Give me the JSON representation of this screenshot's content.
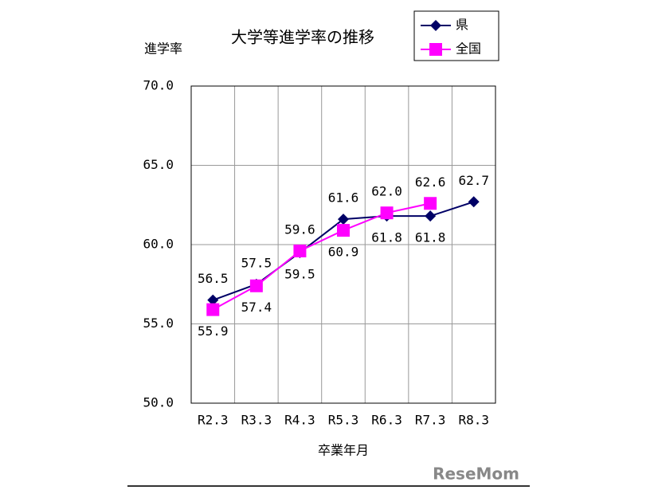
{
  "chart_data": {
    "type": "line",
    "title": "大学等進学率の推移",
    "y_label": "進学率",
    "x_label": "卒業年月",
    "categories": [
      "R2.3",
      "R3.3",
      "R4.3",
      "R5.3",
      "R6.3",
      "R7.3",
      "R8.3"
    ],
    "series": [
      {
        "name": "県",
        "color": "#000066",
        "marker": "diamond",
        "values": [
          56.5,
          57.5,
          59.5,
          61.6,
          61.8,
          61.8,
          62.7
        ],
        "value_labels": [
          "56.5",
          "57.5",
          "59.5",
          "61.6",
          "61.8",
          "61.8",
          "62.7"
        ]
      },
      {
        "name": "全国",
        "color": "#ff00ff",
        "marker": "square",
        "values": [
          55.9,
          57.4,
          59.6,
          60.9,
          62.0,
          62.6,
          null
        ],
        "value_labels": [
          "55.9",
          "57.4",
          "59.6",
          "60.9",
          "62.0",
          "62.6",
          null
        ]
      }
    ],
    "ylim": [
      50,
      70
    ],
    "yticks": [
      {
        "value": 50,
        "label": "50.0"
      },
      {
        "value": 55,
        "label": "55.0"
      },
      {
        "value": 60,
        "label": "60.0"
      },
      {
        "value": 65,
        "label": "65.0"
      },
      {
        "value": 70,
        "label": "70.0"
      }
    ],
    "grid": true,
    "legend": "top-right",
    "watermark": "ReseMom"
  }
}
